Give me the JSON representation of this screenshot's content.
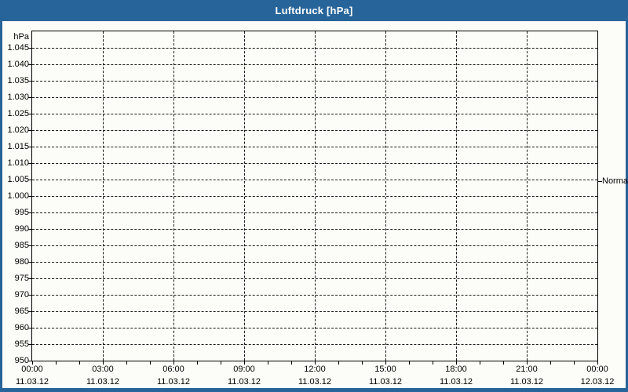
{
  "window": {
    "title": "Luftdruck [hPa]"
  },
  "colors": {
    "frame_blue": "#26649a",
    "title_text": "#ffffff",
    "background": "#fcfdf8",
    "axis": "#000000"
  },
  "chart_data": {
    "type": "line",
    "title": "Luftdruck [hPa]",
    "y_unit": "hPa",
    "ylim": [
      950,
      1050
    ],
    "ytick_step": 5,
    "grid": "dashed",
    "yticks": [
      {
        "value": 1045,
        "label": "1.045"
      },
      {
        "value": 1040,
        "label": "1.040"
      },
      {
        "value": 1035,
        "label": "1.035"
      },
      {
        "value": 1030,
        "label": "1.030"
      },
      {
        "value": 1025,
        "label": "1.025"
      },
      {
        "value": 1020,
        "label": "1.020"
      },
      {
        "value": 1015,
        "label": "1.015"
      },
      {
        "value": 1010,
        "label": "1.010"
      },
      {
        "value": 1005,
        "label": "1.005"
      },
      {
        "value": 1000,
        "label": "1.000"
      },
      {
        "value": 995,
        "label": "995"
      },
      {
        "value": 990,
        "label": "990"
      },
      {
        "value": 985,
        "label": "985"
      },
      {
        "value": 980,
        "label": "980"
      },
      {
        "value": 975,
        "label": "975"
      },
      {
        "value": 970,
        "label": "970"
      },
      {
        "value": 965,
        "label": "965"
      },
      {
        "value": 960,
        "label": "960"
      },
      {
        "value": 955,
        "label": "955"
      },
      {
        "value": 950,
        "label": "950"
      }
    ],
    "x_axis": {
      "major_tick_hours": 3,
      "minor_tick_hours": 1,
      "ticks": [
        {
          "time": "00:00",
          "date": "11.03.12"
        },
        {
          "time": "03:00",
          "date": "11.03.12"
        },
        {
          "time": "06:00",
          "date": "11.03.12"
        },
        {
          "time": "09:00",
          "date": "11.03.12"
        },
        {
          "time": "12:00",
          "date": "11.03.12"
        },
        {
          "time": "15:00",
          "date": "11.03.12"
        },
        {
          "time": "18:00",
          "date": "11.03.12"
        },
        {
          "time": "21:00",
          "date": "11.03.12"
        },
        {
          "time": "00:00",
          "date": "12.03.12"
        }
      ]
    },
    "series": [],
    "annotations": [
      {
        "label": "Normal",
        "y_hpa": 1004.5,
        "side": "right"
      }
    ]
  }
}
